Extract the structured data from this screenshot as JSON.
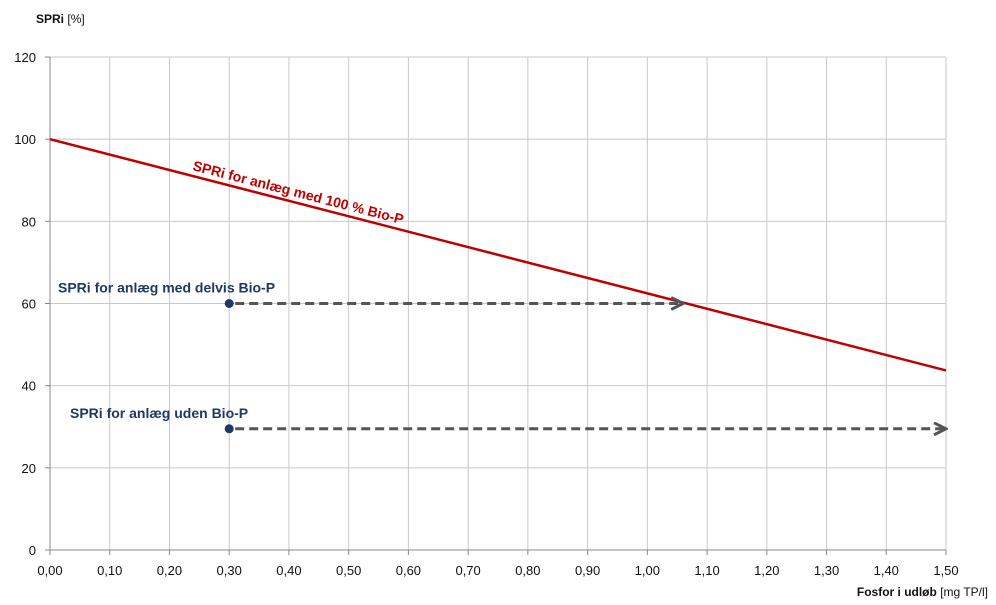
{
  "chart_data": {
    "type": "line",
    "ylabel": {
      "bold": "SPRi",
      "unit": "[%]"
    },
    "xlabel": {
      "bold": "Fosfor i udløb",
      "unit": "[mg TP/l]"
    },
    "xlim": [
      0,
      1.5
    ],
    "ylim": [
      0,
      120
    ],
    "x_ticks": [
      "0,00",
      "0,10",
      "0,20",
      "0,30",
      "0,40",
      "0,50",
      "0,60",
      "0,70",
      "0,80",
      "0,90",
      "1,00",
      "1,10",
      "1,20",
      "1,30",
      "1,40",
      "1,50"
    ],
    "y_ticks": [
      "0",
      "20",
      "40",
      "60",
      "80",
      "100",
      "120"
    ],
    "grid": true,
    "series": [
      {
        "name": "SPRi for anlæg med 100 % Bio-P",
        "color": "#c00000",
        "x": [
          0.0,
          1.5
        ],
        "y": [
          100,
          43.7
        ]
      }
    ],
    "annotations": [
      {
        "label": "SPRi for anlæg med delvis Bio-P",
        "color": "#1f3864",
        "point": {
          "x": 0.3,
          "y": 60
        },
        "arrow_to": {
          "x": 1.06,
          "y": 60
        }
      },
      {
        "label": "SPRi for anlæg uden Bio-P",
        "color": "#1f3864",
        "point": {
          "x": 0.3,
          "y": 29.5
        },
        "arrow_to": {
          "x": 1.5,
          "y": 29.5
        }
      }
    ]
  }
}
